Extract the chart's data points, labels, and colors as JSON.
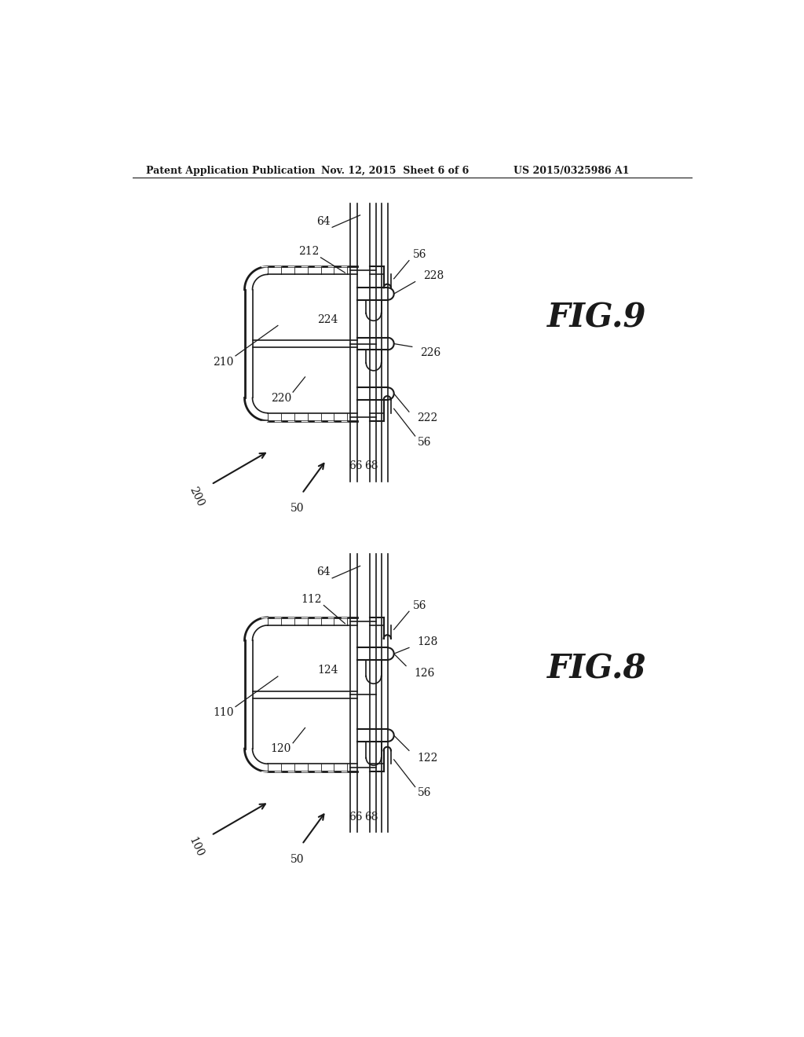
{
  "bg_color": "#ffffff",
  "line_color": "#1a1a1a",
  "header_left": "Patent Application Publication",
  "header_mid": "Nov. 12, 2015  Sheet 6 of 6",
  "header_right": "US 2015/0325986 A1",
  "fig9_label": "FIG.9",
  "fig8_label": "FIG.8"
}
